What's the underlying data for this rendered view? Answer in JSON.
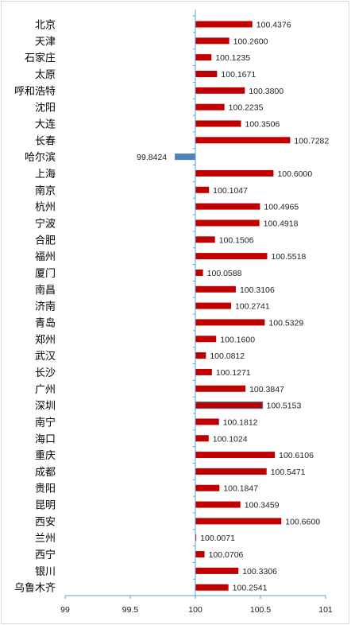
{
  "chart_data": {
    "type": "bar",
    "orientation": "horizontal",
    "title": "",
    "xlabel": "",
    "ylabel": "",
    "xlim": [
      99,
      101
    ],
    "baseline": 100,
    "xticks": [
      "99",
      "99.5",
      "100",
      "100.5",
      "101"
    ],
    "xtick_values": [
      99,
      99.5,
      100,
      100.5,
      101
    ],
    "grid": false,
    "colors": {
      "above": "#c00000",
      "below": "#4f81bd",
      "axis": "#5b9bd5",
      "highlight_border": "#4f6a8a"
    },
    "categories": [
      "北京",
      "天津",
      "石家庄",
      "太原",
      "呼和浩特",
      "沈阳",
      "大连",
      "长春",
      "哈尔滨",
      "上海",
      "南京",
      "杭州",
      "宁波",
      "合肥",
      "福州",
      "厦门",
      "南昌",
      "济南",
      "青岛",
      "郑州",
      "武汉",
      "长沙",
      "广州",
      "深圳",
      "南宁",
      "海口",
      "重庆",
      "成都",
      "贵阳",
      "昆明",
      "西安",
      "兰州",
      "西宁",
      "银川",
      "乌鲁木齐"
    ],
    "values": [
      100.4376,
      100.26,
      100.1235,
      100.1671,
      100.38,
      100.2235,
      100.3506,
      100.7282,
      99.8424,
      100.6,
      100.1047,
      100.4965,
      100.4918,
      100.1506,
      100.5518,
      100.0588,
      100.3106,
      100.2741,
      100.5329,
      100.16,
      100.0812,
      100.1271,
      100.3847,
      100.5153,
      100.1812,
      100.1024,
      100.6106,
      100.5471,
      100.1847,
      100.3459,
      100.66,
      100.0071,
      100.0706,
      100.3306,
      100.2541
    ],
    "value_labels": [
      "100.4376",
      "100.2600",
      "100.1235",
      "100.1671",
      "100.3800",
      "100.2235",
      "100.3506",
      "100.7282",
      "99.8424",
      "100.6000",
      "100.1047",
      "100.4965",
      "100.4918",
      "100.1506",
      "100.5518",
      "100.0588",
      "100.3106",
      "100.2741",
      "100.5329",
      "100.1600",
      "100.0812",
      "100.1271",
      "100.3847",
      "100.5153",
      "100.1812",
      "100.1024",
      "100.6106",
      "100.5471",
      "100.1847",
      "100.3459",
      "100.6600",
      "100.0071",
      "100.0706",
      "100.3306",
      "100.2541"
    ],
    "highlighted_category": "深圳"
  }
}
